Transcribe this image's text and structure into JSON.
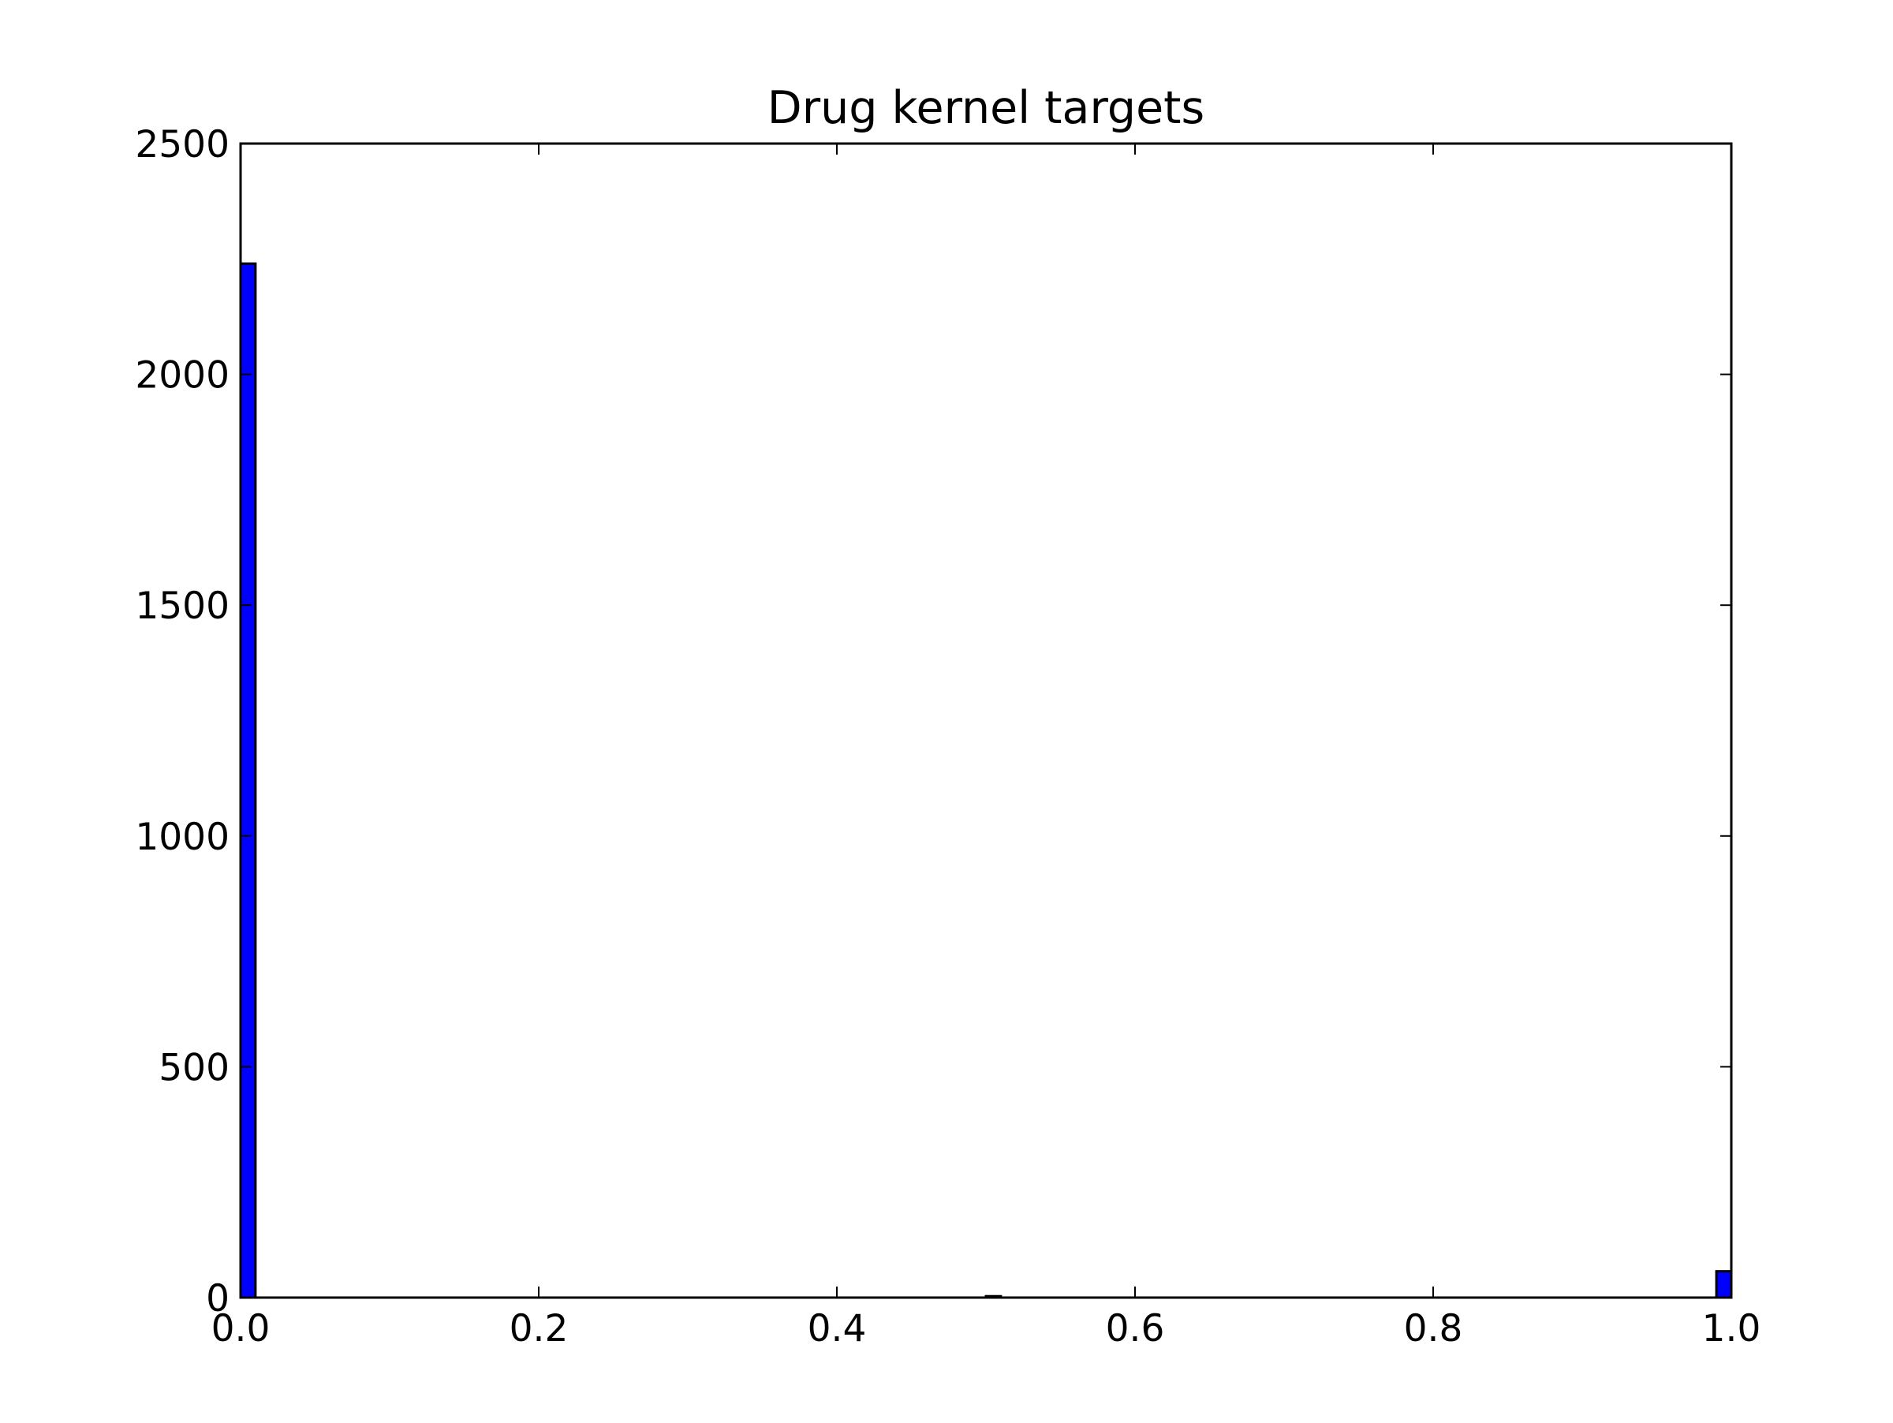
{
  "chart_data": {
    "type": "bar",
    "title": "Drug kernel targets",
    "xlabel": "",
    "ylabel": "",
    "xlim": [
      0.0,
      1.0
    ],
    "ylim": [
      0,
      2500
    ],
    "x_ticks": [
      "0.0",
      "0.2",
      "0.4",
      "0.6",
      "0.8",
      "1.0"
    ],
    "y_ticks": [
      "0",
      "500",
      "1000",
      "1500",
      "2000",
      "2500"
    ],
    "bin_width": 0.01,
    "bins": [
      {
        "x": 0.0,
        "count": 2240
      },
      {
        "x": 0.5,
        "count": 3
      },
      {
        "x": 0.99,
        "count": 57
      }
    ],
    "bar_color": "#0000ff",
    "edge_color": "#000000",
    "grid": false,
    "legend": "none"
  }
}
